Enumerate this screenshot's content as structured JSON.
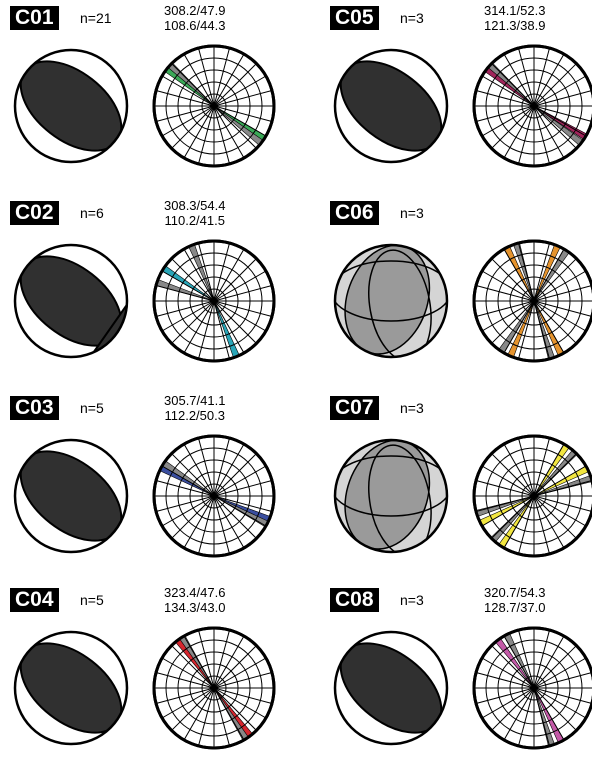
{
  "panels": [
    {
      "id": "C01",
      "count": "n=21",
      "planes": [
        "308.2/47.9",
        "108.6/44.3"
      ],
      "rose_color": "#3aa957",
      "rose_strikes": [
        305,
        310,
        120,
        125
      ],
      "type": "single",
      "mechanism": "black"
    },
    {
      "id": "C05",
      "count": "n=3",
      "planes": [
        "314.1/52.3",
        "121.3/38.9"
      ],
      "rose_color": "#a0245a",
      "rose_strikes": [
        305,
        310,
        118,
        125
      ],
      "type": "single",
      "mechanism": "black"
    },
    {
      "id": "C02",
      "count": "n=6",
      "planes": [
        "308.3/54.4",
        "110.2/41.5"
      ],
      "rose_color": "#2aa6b8",
      "rose_strikes": [
        300,
        335,
        155,
        285
      ],
      "type": "single",
      "mechanism": "black"
    },
    {
      "id": "C06",
      "count": "n=3",
      "planes": [],
      "rose_color": "#e6942e",
      "rose_strikes": [
        20,
        30,
        150,
        160,
        200,
        210,
        330,
        340
      ],
      "type": "multi",
      "mechanism": "gray"
    },
    {
      "id": "C03",
      "count": "n=5",
      "planes": [
        "305.7/41.1",
        "112.2/50.3"
      ],
      "rose_color": "#3a4ea0",
      "rose_strikes": [
        295,
        300,
        110,
        115
      ],
      "type": "single",
      "mechanism": "black"
    },
    {
      "id": "C07",
      "count": "n=3",
      "planes": [],
      "rose_color": "#f2e640",
      "rose_strikes": [
        30,
        40,
        60,
        70,
        210,
        220,
        240,
        250
      ],
      "type": "multi",
      "mechanism": "gray"
    },
    {
      "id": "C04",
      "count": "n=5",
      "planes": [
        "323.4/47.6",
        "134.3/43.0"
      ],
      "rose_color": "#d6262e",
      "rose_strikes": [
        320,
        325,
        140,
        145
      ],
      "type": "single",
      "mechanism": "black"
    },
    {
      "id": "C08",
      "count": "n=3",
      "planes": [
        "320.7/54.3",
        "128.7/37.0"
      ],
      "rose_color": "#c45aa8",
      "rose_strikes": [
        320,
        330,
        150,
        160
      ],
      "type": "single",
      "mechanism": "black"
    }
  ]
}
